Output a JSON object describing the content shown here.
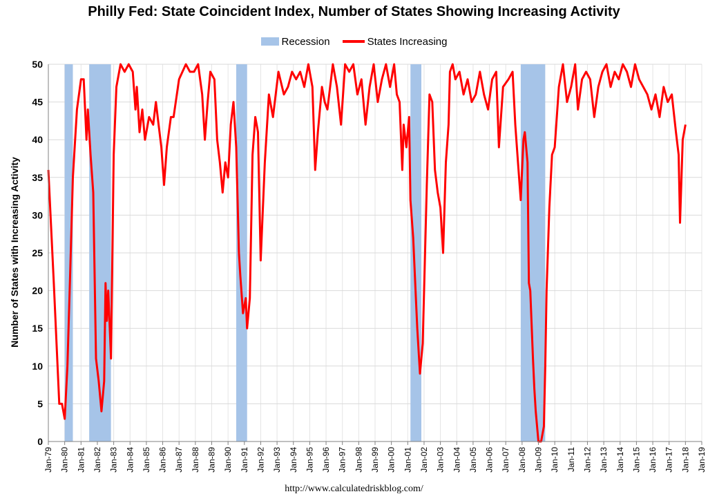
{
  "title": "Philly Fed: State Coincident Index, Number of States Showing Increasing Activity",
  "footer": "http://www.calculatedriskblog.com/",
  "colors": {
    "recession": "#a6c4e8",
    "line": "#ff0000",
    "grid": "#d9d9d9",
    "vgrid": "#e4e4e4"
  },
  "chart_data": {
    "type": "line",
    "title": "Philly Fed: State Coincident Index, Number of States Showing Increasing Activity",
    "xlabel": "",
    "ylabel": "Number of States with Increasing Activity",
    "ylim": [
      0,
      50
    ],
    "yticks": [
      0,
      5,
      10,
      15,
      20,
      25,
      30,
      35,
      40,
      45,
      50
    ],
    "xlim": [
      "1979-01",
      "2019-01"
    ],
    "xticks": [
      "Jan-79",
      "Jan-80",
      "Jan-81",
      "Jan-82",
      "Jan-83",
      "Jan-84",
      "Jan-85",
      "Jan-86",
      "Jan-87",
      "Jan-88",
      "Jan-89",
      "Jan-90",
      "Jan-91",
      "Jan-92",
      "Jan-93",
      "Jan-94",
      "Jan-95",
      "Jan-96",
      "Jan-97",
      "Jan-98",
      "Jan-99",
      "Jan-00",
      "Jan-01",
      "Jan-02",
      "Jan-03",
      "Jan-04",
      "Jan-05",
      "Jan-06",
      "Jan-07",
      "Jan-08",
      "Jan-09",
      "Jan-10",
      "Jan-11",
      "Jan-12",
      "Jan-13",
      "Jan-14",
      "Jan-15",
      "Jan-16",
      "Jan-17",
      "Jan-18",
      "Jan-19"
    ],
    "grid": {
      "horizontal": true,
      "vertical": true
    },
    "legend": {
      "position": "top",
      "entries": [
        "Recession",
        "States Increasing"
      ]
    },
    "recessions": [
      {
        "start": "1980-01",
        "end": "1980-07"
      },
      {
        "start": "1981-07",
        "end": "1982-11"
      },
      {
        "start": "1990-07",
        "end": "1991-03"
      },
      {
        "start": "2001-03",
        "end": "2001-11"
      },
      {
        "start": "2007-12",
        "end": "2009-06"
      }
    ],
    "series": [
      {
        "name": "States Increasing",
        "points": [
          [
            "1979-01",
            36
          ],
          [
            "1979-05",
            21
          ],
          [
            "1979-09",
            5
          ],
          [
            "1979-11",
            5
          ],
          [
            "1980-01",
            3
          ],
          [
            "1980-03",
            10
          ],
          [
            "1980-05",
            22
          ],
          [
            "1980-07",
            35
          ],
          [
            "1980-10",
            44
          ],
          [
            "1981-01",
            48
          ],
          [
            "1981-03",
            48
          ],
          [
            "1981-05",
            40
          ],
          [
            "1981-06",
            44
          ],
          [
            "1981-08",
            38
          ],
          [
            "1981-10",
            33
          ],
          [
            "1981-12",
            11
          ],
          [
            "1982-02",
            8
          ],
          [
            "1982-04",
            4
          ],
          [
            "1982-06",
            8
          ],
          [
            "1982-07",
            21
          ],
          [
            "1982-08",
            16
          ],
          [
            "1982-09",
            20
          ],
          [
            "1982-11",
            11
          ],
          [
            "1983-01",
            38
          ],
          [
            "1983-03",
            47
          ],
          [
            "1983-06",
            50
          ],
          [
            "1983-09",
            49
          ],
          [
            "1983-12",
            50
          ],
          [
            "1984-03",
            49
          ],
          [
            "1984-05",
            44
          ],
          [
            "1984-06",
            47
          ],
          [
            "1984-08",
            41
          ],
          [
            "1984-10",
            44
          ],
          [
            "1984-12",
            40
          ],
          [
            "1985-03",
            43
          ],
          [
            "1985-06",
            42
          ],
          [
            "1985-08",
            45
          ],
          [
            "1985-10",
            42
          ],
          [
            "1985-12",
            39
          ],
          [
            "1986-02",
            34
          ],
          [
            "1986-04",
            39
          ],
          [
            "1986-07",
            43
          ],
          [
            "1986-09",
            43
          ],
          [
            "1987-01",
            48
          ],
          [
            "1987-06",
            50
          ],
          [
            "1987-09",
            49
          ],
          [
            "1987-12",
            49
          ],
          [
            "1988-03",
            50
          ],
          [
            "1988-06",
            46
          ],
          [
            "1988-08",
            40
          ],
          [
            "1988-10",
            45
          ],
          [
            "1988-12",
            49
          ],
          [
            "1989-03",
            48
          ],
          [
            "1989-05",
            40
          ],
          [
            "1989-07",
            37
          ],
          [
            "1989-09",
            33
          ],
          [
            "1989-11",
            37
          ],
          [
            "1990-01",
            35
          ],
          [
            "1990-03",
            42
          ],
          [
            "1990-05",
            45
          ],
          [
            "1990-07",
            39
          ],
          [
            "1990-09",
            25
          ],
          [
            "1990-10",
            22
          ],
          [
            "1990-12",
            17
          ],
          [
            "1991-02",
            19
          ],
          [
            "1991-03",
            15
          ],
          [
            "1991-05",
            19
          ],
          [
            "1991-07",
            38
          ],
          [
            "1991-09",
            43
          ],
          [
            "1991-11",
            41
          ],
          [
            "1992-01",
            24
          ],
          [
            "1992-04",
            37
          ],
          [
            "1992-07",
            46
          ],
          [
            "1992-10",
            43
          ],
          [
            "1993-02",
            49
          ],
          [
            "1993-06",
            46
          ],
          [
            "1993-09",
            47
          ],
          [
            "1993-12",
            49
          ],
          [
            "1994-03",
            48
          ],
          [
            "1994-06",
            49
          ],
          [
            "1994-09",
            47
          ],
          [
            "1994-12",
            50
          ],
          [
            "1995-03",
            47
          ],
          [
            "1995-05",
            36
          ],
          [
            "1995-07",
            41
          ],
          [
            "1995-10",
            47
          ],
          [
            "1995-12",
            45
          ],
          [
            "1996-02",
            44
          ],
          [
            "1996-06",
            50
          ],
          [
            "1996-09",
            47
          ],
          [
            "1996-12",
            42
          ],
          [
            "1997-03",
            50
          ],
          [
            "1997-06",
            49
          ],
          [
            "1997-09",
            50
          ],
          [
            "1997-12",
            46
          ],
          [
            "1998-03",
            48
          ],
          [
            "1998-06",
            42
          ],
          [
            "1998-09",
            47
          ],
          [
            "1998-12",
            50
          ],
          [
            "1999-03",
            45
          ],
          [
            "1999-06",
            48
          ],
          [
            "1999-09",
            50
          ],
          [
            "1999-12",
            47
          ],
          [
            "2000-03",
            50
          ],
          [
            "2000-05",
            46
          ],
          [
            "2000-07",
            45
          ],
          [
            "2000-09",
            36
          ],
          [
            "2000-10",
            42
          ],
          [
            "2000-12",
            39
          ],
          [
            "2001-02",
            43
          ],
          [
            "2001-03",
            32
          ],
          [
            "2001-05",
            27
          ],
          [
            "2001-07",
            19
          ],
          [
            "2001-08",
            15
          ],
          [
            "2001-10",
            9
          ],
          [
            "2001-12",
            13
          ],
          [
            "2002-03",
            34
          ],
          [
            "2002-05",
            46
          ],
          [
            "2002-07",
            45
          ],
          [
            "2002-09",
            36
          ],
          [
            "2002-11",
            33
          ],
          [
            "2003-01",
            31
          ],
          [
            "2003-03",
            25
          ],
          [
            "2003-05",
            37
          ],
          [
            "2003-07",
            42
          ],
          [
            "2003-08",
            49
          ],
          [
            "2003-10",
            50
          ],
          [
            "2003-12",
            48
          ],
          [
            "2004-03",
            49
          ],
          [
            "2004-06",
            46
          ],
          [
            "2004-09",
            48
          ],
          [
            "2004-12",
            45
          ],
          [
            "2005-03",
            46
          ],
          [
            "2005-06",
            49
          ],
          [
            "2005-09",
            46
          ],
          [
            "2005-12",
            44
          ],
          [
            "2006-03",
            48
          ],
          [
            "2006-06",
            49
          ],
          [
            "2006-08",
            39
          ],
          [
            "2006-11",
            47
          ],
          [
            "2007-03",
            48
          ],
          [
            "2007-06",
            49
          ],
          [
            "2007-08",
            42
          ],
          [
            "2007-10",
            37
          ],
          [
            "2007-12",
            32
          ],
          [
            "2008-02",
            40
          ],
          [
            "2008-03",
            41
          ],
          [
            "2008-05",
            37
          ],
          [
            "2008-06",
            21
          ],
          [
            "2008-07",
            20
          ],
          [
            "2008-09",
            11
          ],
          [
            "2008-10",
            7
          ],
          [
            "2008-11",
            4
          ],
          [
            "2009-01",
            0
          ],
          [
            "2009-03",
            0
          ],
          [
            "2009-05",
            2
          ],
          [
            "2009-06",
            10
          ],
          [
            "2009-07",
            20
          ],
          [
            "2009-09",
            31
          ],
          [
            "2009-11",
            38
          ],
          [
            "2010-01",
            39
          ],
          [
            "2010-04",
            47
          ],
          [
            "2010-07",
            50
          ],
          [
            "2010-10",
            45
          ],
          [
            "2011-01",
            47
          ],
          [
            "2011-04",
            50
          ],
          [
            "2011-06",
            44
          ],
          [
            "2011-09",
            48
          ],
          [
            "2011-12",
            49
          ],
          [
            "2012-03",
            48
          ],
          [
            "2012-06",
            43
          ],
          [
            "2012-09",
            47
          ],
          [
            "2012-12",
            49
          ],
          [
            "2013-03",
            50
          ],
          [
            "2013-06",
            47
          ],
          [
            "2013-09",
            49
          ],
          [
            "2013-12",
            48
          ],
          [
            "2014-03",
            50
          ],
          [
            "2014-06",
            49
          ],
          [
            "2014-09",
            47
          ],
          [
            "2014-12",
            50
          ],
          [
            "2015-03",
            48
          ],
          [
            "2015-06",
            47
          ],
          [
            "2015-09",
            46
          ],
          [
            "2015-12",
            44
          ],
          [
            "2016-03",
            46
          ],
          [
            "2016-06",
            43
          ],
          [
            "2016-09",
            47
          ],
          [
            "2016-12",
            45
          ],
          [
            "2017-03",
            46
          ],
          [
            "2017-06",
            41
          ],
          [
            "2017-08",
            38
          ],
          [
            "2017-09",
            29
          ],
          [
            "2017-11",
            40
          ],
          [
            "2018-01",
            42
          ]
        ]
      }
    ]
  }
}
